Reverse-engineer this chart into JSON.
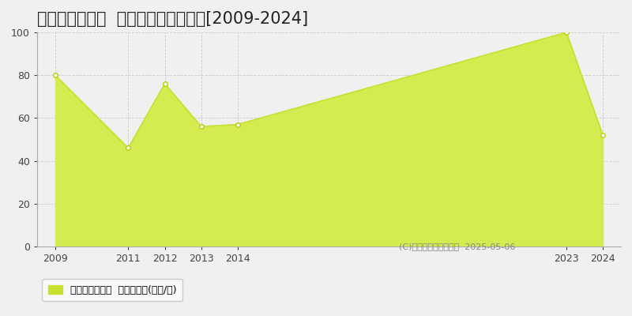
{
  "title": "尾張旭市白鳳町  マンション価格推移[2009-2024]",
  "years": [
    2009,
    2011,
    2012,
    2013,
    2014,
    2023,
    2024
  ],
  "values": [
    80,
    46,
    76,
    56,
    57,
    100,
    52
  ],
  "line_color": "#c8e030",
  "fill_color": "#d4ec50",
  "fill_alpha": 1.0,
  "marker_color": "#ffffff",
  "marker_edge_color": "#b8cc00",
  "ylim": [
    0,
    100
  ],
  "yticks": [
    0,
    20,
    40,
    60,
    80,
    100
  ],
  "xlim_left": 2008.5,
  "xlim_right": 2024.5,
  "xticks": [
    2009,
    2011,
    2012,
    2013,
    2014,
    2023,
    2024
  ],
  "bg_color": "#f0f0f0",
  "plot_bg_color": "#f0f0f0",
  "grid_color": "#cccccc",
  "legend_label": "マンション価格  平均坪単価(万円/坪)",
  "copyright_text": "(C)土地価格ドットコム  2025-05-06",
  "title_fontsize": 15,
  "tick_fontsize": 9,
  "legend_fontsize": 9,
  "copyright_fontsize": 8
}
